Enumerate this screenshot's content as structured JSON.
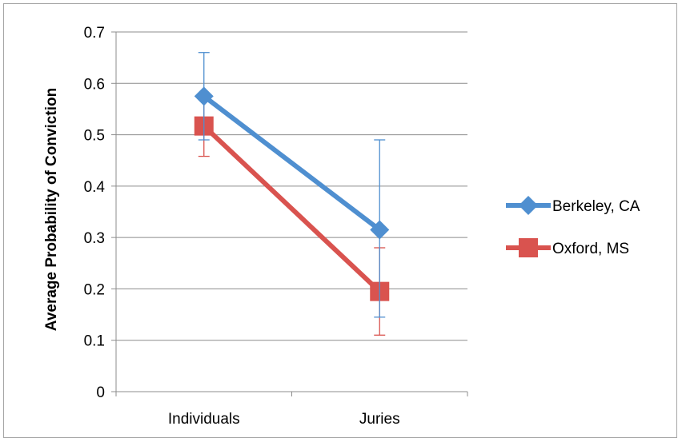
{
  "chart_data": {
    "type": "line",
    "title": "",
    "xlabel": "",
    "ylabel": "Average Probability of Conviction",
    "categories": [
      "Individuals",
      "Juries"
    ],
    "ylim": [
      0,
      0.7
    ],
    "yticks": [
      0,
      0.1,
      0.2,
      0.3,
      0.4,
      0.5,
      0.6,
      0.7
    ],
    "ytick_labels": [
      "0",
      "0.1",
      "0.2",
      "0.3",
      "0.4",
      "0.5",
      "0.6",
      "0.7"
    ],
    "grid": true,
    "legend_position": "right",
    "series": [
      {
        "name": "Berkeley, CA",
        "color": "#4f8fd0",
        "marker": "diamond",
        "values": [
          0.575,
          0.315
        ],
        "error_upper": [
          0.66,
          0.49
        ],
        "error_lower": [
          0.49,
          0.145
        ]
      },
      {
        "name": "Oxford, MS",
        "color": "#d9534f",
        "marker": "square",
        "values": [
          0.517,
          0.195
        ],
        "error_upper": [
          0.576,
          0.28
        ],
        "error_lower": [
          0.458,
          0.11
        ]
      }
    ]
  }
}
